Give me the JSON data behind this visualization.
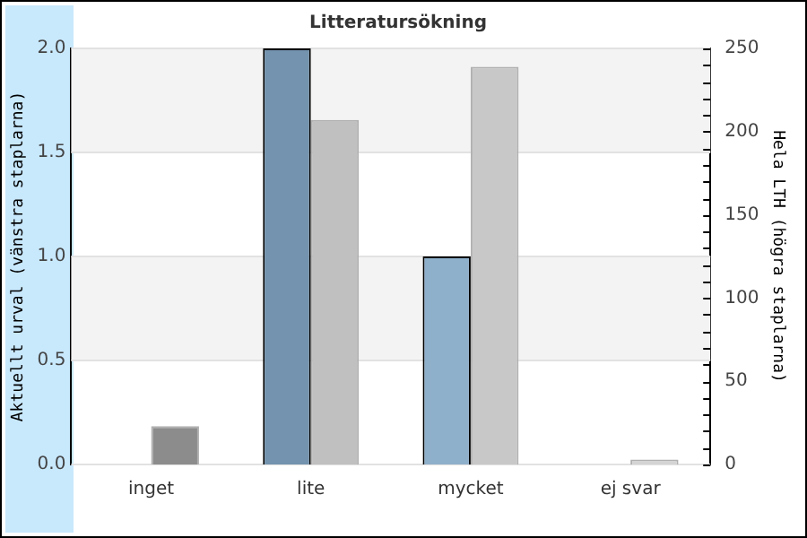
{
  "chart_data": {
    "type": "bar",
    "title": "Litteratursökning",
    "ylabel": "Aktuellt urval (vänstra staplarna)",
    "y2label": "Hela LTH (högra staplarna)",
    "categories": [
      "inget",
      "lite",
      "mycket",
      "ej svar"
    ],
    "series": [
      {
        "colors": [
          "#7393ae",
          "#7393ae",
          "#8fb0cb",
          "#8fb0cb"
        ],
        "values": [
          0,
          2,
          1,
          0
        ]
      },
      {
        "colors": [
          "#8c8c8c",
          "#c0c0c0",
          "#c8c8c8",
          "#d4d4d4"
        ],
        "values": [
          23,
          207,
          239,
          3
        ],
        "axis": "y2"
      }
    ],
    "ylim": [
      0,
      2
    ],
    "yticks": [
      {
        "value": 0,
        "label": "0.0"
      },
      {
        "value": 0.5,
        "label": "0.5"
      },
      {
        "value": 1,
        "label": "1.0"
      },
      {
        "value": 1.5,
        "label": "1.5"
      },
      {
        "value": 2,
        "label": "2.0"
      }
    ],
    "y2lim": [
      0,
      250
    ],
    "y2ticks": [
      0,
      {
        "value": 10,
        "label": null
      },
      {
        "value": 20,
        "label": null
      },
      {
        "value": 30,
        "label": null
      },
      {
        "value": 40,
        "label": null
      },
      50,
      {
        "value": 60,
        "label": null
      },
      {
        "value": 70,
        "label": null
      },
      {
        "value": 80,
        "label": null
      },
      {
        "value": 90,
        "label": null
      },
      100,
      {
        "value": 110,
        "label": null
      },
      {
        "value": 120,
        "label": null
      },
      {
        "value": 130,
        "label": null
      },
      {
        "value": 140,
        "label": null
      },
      150,
      {
        "value": 160,
        "label": null
      },
      {
        "value": 170,
        "label": null
      },
      {
        "value": 180,
        "label": null
      },
      {
        "value": 190,
        "label": null
      },
      200,
      {
        "value": 210,
        "label": null
      },
      {
        "value": 220,
        "label": null
      },
      {
        "value": 230,
        "label": null
      },
      {
        "value": 240,
        "label": null
      },
      250
    ],
    "grid": "y",
    "legend": false
  }
}
